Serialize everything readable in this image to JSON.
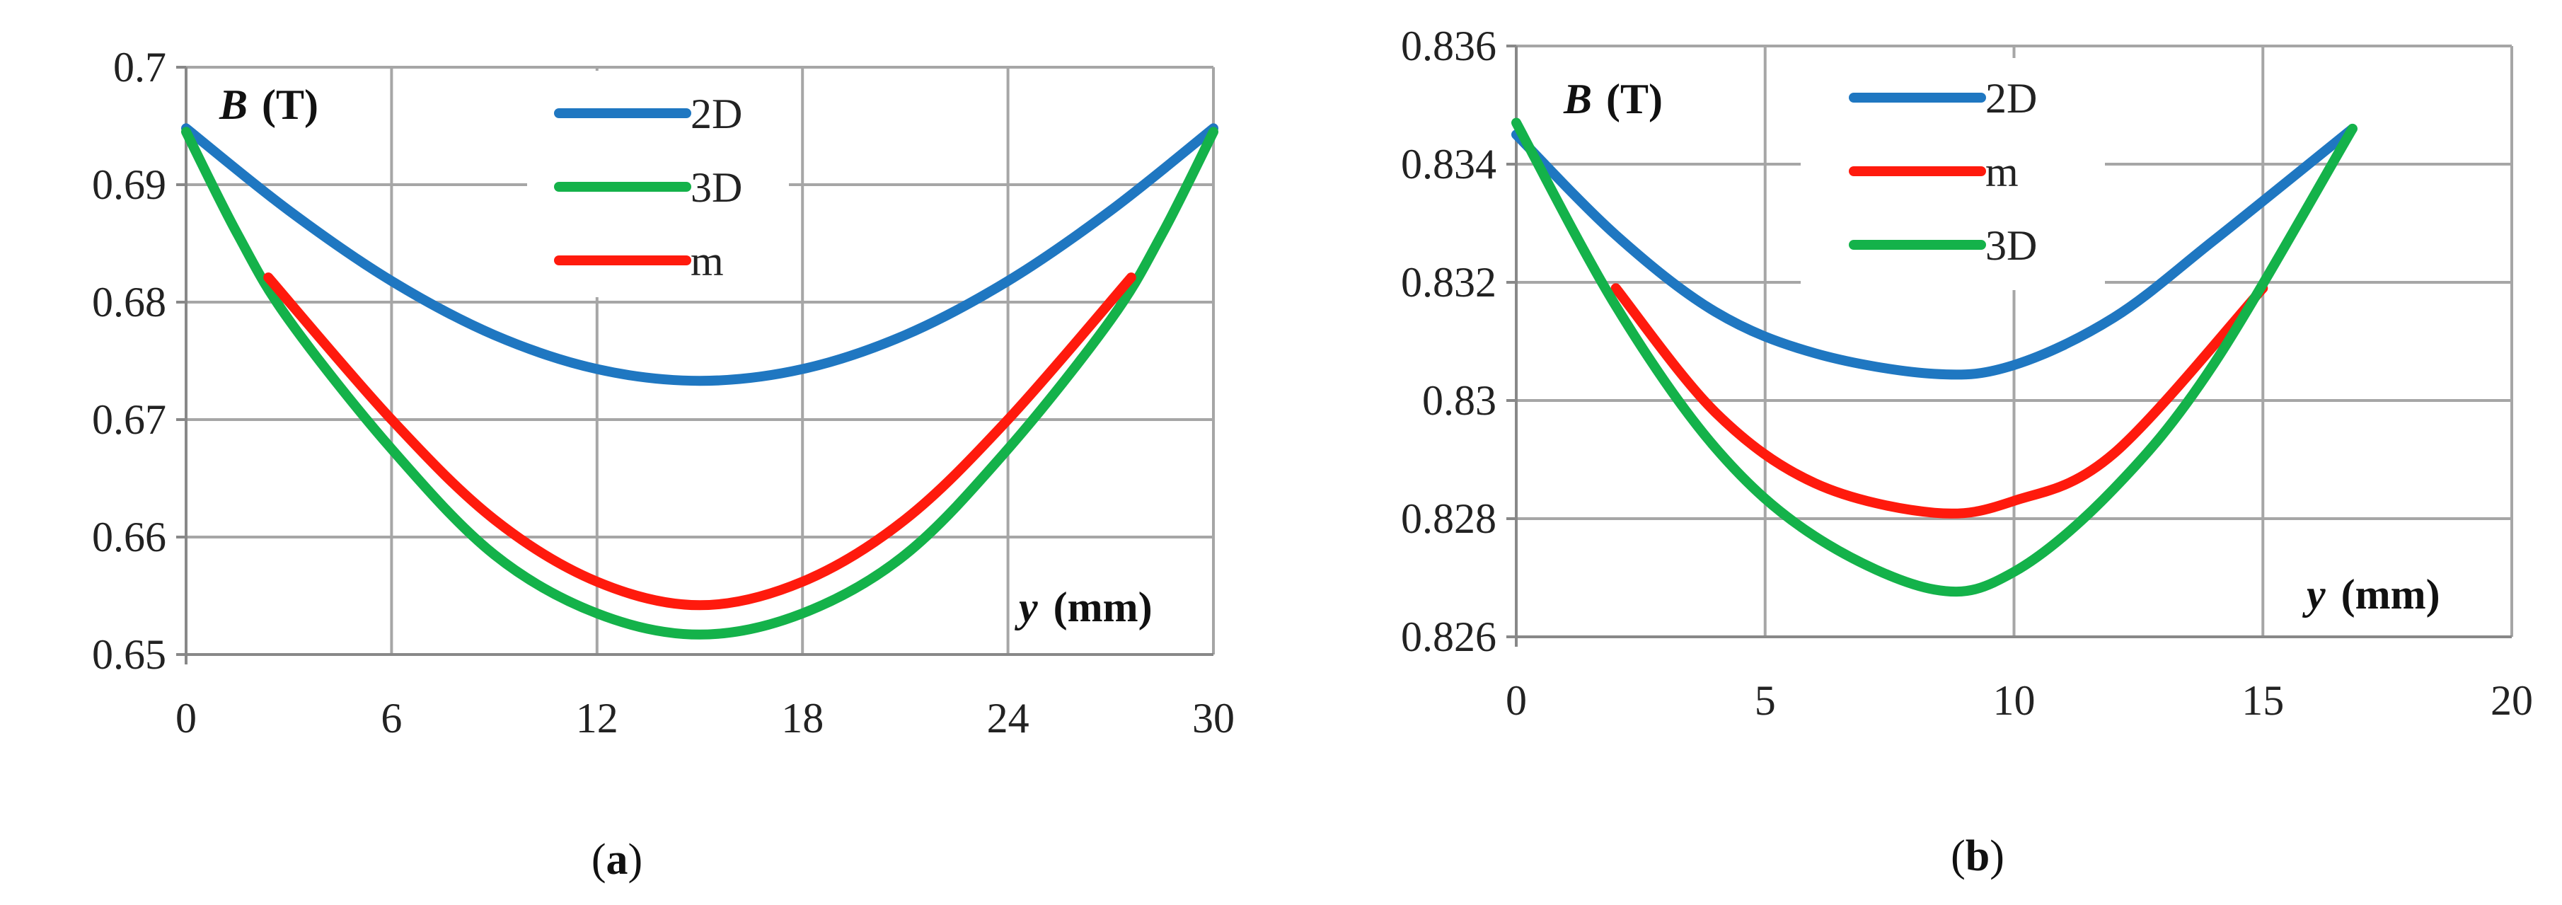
{
  "colors": {
    "2D": "#1f77c1",
    "3D": "#14b24a",
    "m": "#ff1a0d",
    "grid": "#a6a6a6",
    "axis": "#888888"
  },
  "chart_data": [
    {
      "type": "line",
      "panel": "a",
      "caption_letter": "a",
      "ylabel_var": "B",
      "ylabel_unit": "(T)",
      "xlabel_var": "y",
      "xlabel_unit": "(mm)",
      "xlim": [
        0,
        30
      ],
      "ylim": [
        0.65,
        0.7
      ],
      "xticks": [
        0,
        6,
        12,
        18,
        24,
        30
      ],
      "xtick_labels": [
        "0",
        "6",
        "12",
        "18",
        "24",
        "30"
      ],
      "yticks": [
        0.65,
        0.66,
        0.67,
        0.68,
        0.69,
        0.7
      ],
      "ytick_labels": [
        "0.65",
        "0.66",
        "0.67",
        "0.68",
        "0.69",
        "0.7"
      ],
      "legend_order": [
        "2D",
        "3D",
        "m"
      ],
      "series": [
        {
          "name": "2D",
          "x": [
            0,
            3,
            6,
            9,
            12,
            15,
            18,
            21,
            24,
            27,
            30
          ],
          "y": [
            0.6948,
            0.6878,
            0.6818,
            0.6772,
            0.6743,
            0.6733,
            0.6743,
            0.6772,
            0.6818,
            0.6878,
            0.6948
          ]
        },
        {
          "name": "3D",
          "x": [
            0,
            1.5,
            3,
            6,
            9,
            12,
            15,
            18,
            21,
            24,
            27,
            28.5,
            30
          ],
          "y": [
            0.6945,
            0.6858,
            0.6785,
            0.6675,
            0.6585,
            0.6535,
            0.6517,
            0.6535,
            0.6585,
            0.6675,
            0.6785,
            0.6858,
            0.6945
          ]
        },
        {
          "name": "m",
          "x": [
            2.4,
            6,
            9,
            12,
            15,
            18,
            21,
            24,
            27.6
          ],
          "y": [
            0.6821,
            0.67,
            0.6615,
            0.6562,
            0.6542,
            0.6562,
            0.6615,
            0.67,
            0.6821
          ]
        }
      ]
    },
    {
      "type": "line",
      "panel": "b",
      "caption_letter": "b",
      "ylabel_var": "B",
      "ylabel_unit": "(T)",
      "xlabel_var": "y",
      "xlabel_unit": "(mm)",
      "xlim": [
        0,
        20
      ],
      "ylim": [
        0.826,
        0.836
      ],
      "xticks": [
        0,
        5,
        10,
        15,
        20
      ],
      "xtick_labels": [
        "0",
        "5",
        "10",
        "15",
        "20"
      ],
      "yticks": [
        0.826,
        0.828,
        0.83,
        0.832,
        0.834,
        0.836
      ],
      "ytick_labels": [
        "0.826",
        "0.828",
        "0.83",
        "0.832",
        "0.834",
        "0.836"
      ],
      "legend_order": [
        "2D",
        "m",
        "3D"
      ],
      "series": [
        {
          "name": "2D",
          "x": [
            0,
            2,
            4,
            6,
            8.4,
            10,
            12,
            14,
            16.8
          ],
          "y": [
            0.8345,
            0.8328,
            0.8315,
            0.8308,
            0.83045,
            0.8306,
            0.8314,
            0.8327,
            0.8346
          ]
        },
        {
          "name": "m",
          "x": [
            2,
            4,
            6,
            8.4,
            10,
            12,
            15
          ],
          "y": [
            0.8319,
            0.8298,
            0.8286,
            0.8281,
            0.8283,
            0.8291,
            0.8319
          ]
        },
        {
          "name": "3D",
          "x": [
            0,
            2,
            4,
            6,
            8.4,
            10,
            12,
            14,
            16.8
          ],
          "y": [
            0.8347,
            0.8316,
            0.8292,
            0.8277,
            0.8268,
            0.8271,
            0.8285,
            0.8306,
            0.8346
          ]
        }
      ]
    }
  ]
}
